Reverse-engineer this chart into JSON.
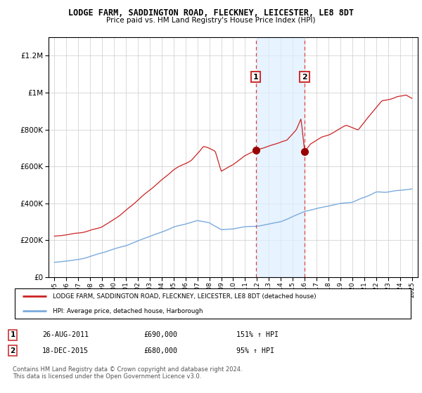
{
  "title": "LODGE FARM, SADDINGTON ROAD, FLECKNEY, LEICESTER, LE8 8DT",
  "subtitle": "Price paid vs. HM Land Registry's House Price Index (HPI)",
  "legend_line1": "LODGE FARM, SADDINGTON ROAD, FLECKNEY, LEICESTER, LE8 8DT (detached house)",
  "legend_line2": "HPI: Average price, detached house, Harborough",
  "sale1_date": "26-AUG-2011",
  "sale1_price": 690000,
  "sale1_pct": "151% ↑ HPI",
  "sale2_date": "18-DEC-2015",
  "sale2_price": 680000,
  "sale2_pct": "95% ↑ HPI",
  "copyright": "Contains HM Land Registry data © Crown copyright and database right 2024.\nThis data is licensed under the Open Government Licence v3.0.",
  "hpi_color": "#7aaadd",
  "price_color": "#cc2222",
  "sale1_x": 2011.9,
  "sale2_x": 2016.0,
  "ylim_max": 1300000,
  "ylim_min": 0,
  "xlim_min": 1994.5,
  "xlim_max": 2025.5,
  "bg_shade_color": "#ddeeff",
  "yticks": [
    0,
    200000,
    400000,
    600000,
    800000,
    1000000,
    1200000
  ]
}
